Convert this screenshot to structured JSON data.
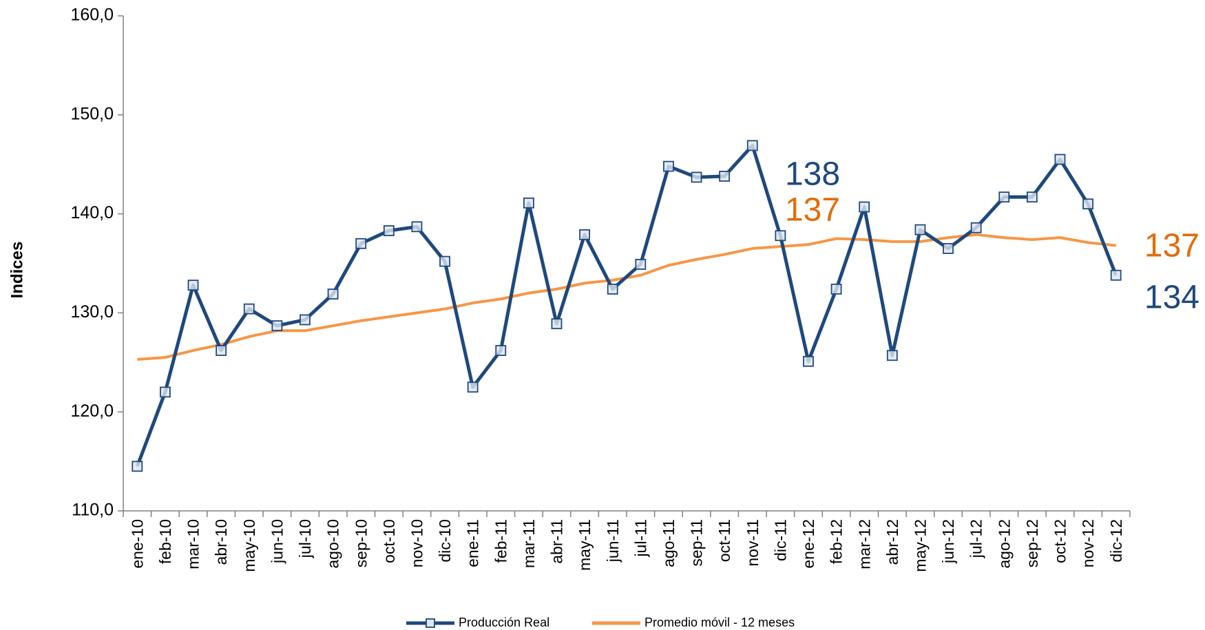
{
  "chart_data": {
    "type": "line",
    "y_label": "Indices",
    "categories": [
      "ene-10",
      "feb-10",
      "mar-10",
      "abr-10",
      "may-10",
      "jun-10",
      "jul-10",
      "ago-10",
      "sep-10",
      "oct-10",
      "nov-10",
      "dic-10",
      "ene-11",
      "feb-11",
      "mar-11",
      "abr-11",
      "may-11",
      "jun-11",
      "jul-11",
      "ago-11",
      "sep-11",
      "oct-11",
      "nov-11",
      "dic-11",
      "ene-12",
      "feb-12",
      "mar-12",
      "abr-12",
      "may-12",
      "jun-12",
      "jul-12",
      "ago-12",
      "sep-12",
      "oct-12",
      "nov-12",
      "dic-12"
    ],
    "series": [
      {
        "name": "Producción Real",
        "color": "#1f497d",
        "marker": "square",
        "values": [
          114.5,
          122.0,
          132.8,
          126.2,
          130.4,
          128.7,
          129.3,
          131.9,
          137.0,
          138.3,
          138.7,
          135.2,
          122.5,
          126.2,
          141.1,
          128.9,
          137.9,
          132.4,
          134.9,
          144.8,
          143.7,
          143.8,
          146.9,
          137.8,
          125.1,
          132.4,
          140.7,
          125.7,
          138.4,
          136.5,
          138.6,
          141.7,
          141.7,
          145.5,
          141.0,
          133.8
        ]
      },
      {
        "name": "Promedio móvil - 12 meses",
        "color": "#f79646",
        "values": [
          125.3,
          125.5,
          126.2,
          126.8,
          127.6,
          128.2,
          128.2,
          128.7,
          129.2,
          129.6,
          130.0,
          130.4,
          131.0,
          131.4,
          132.0,
          132.4,
          133.0,
          133.3,
          133.8,
          134.8,
          135.4,
          135.9,
          136.5,
          136.7,
          136.9,
          137.5,
          137.4,
          137.2,
          137.2,
          137.6,
          137.9,
          137.6,
          137.4,
          137.6,
          137.1,
          136.8
        ]
      }
    ],
    "ylim": [
      110,
      160
    ],
    "yticks": [
      {
        "value": 110,
        "label": "110,0"
      },
      {
        "value": 120,
        "label": "120,0"
      },
      {
        "value": 130,
        "label": "130,0"
      },
      {
        "value": 140,
        "label": "140,0"
      },
      {
        "value": 150,
        "label": "150,0"
      },
      {
        "value": 160,
        "label": "160,0"
      }
    ],
    "grid": false,
    "legend": "bottom",
    "annotations": [
      {
        "text": "138",
        "color": "#1f497d"
      },
      {
        "text": "137",
        "color": "#e36c09"
      },
      {
        "text": "137",
        "color": "#e36c09"
      },
      {
        "text": "134",
        "color": "#1f497d"
      }
    ]
  }
}
